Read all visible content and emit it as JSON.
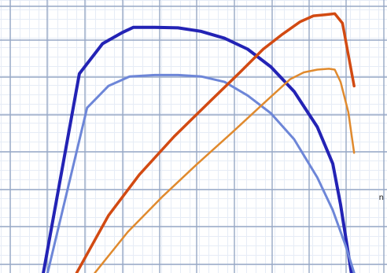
{
  "chart_data": {
    "type": "line",
    "title": "",
    "xlabel": "",
    "ylabel": "",
    "grid": true,
    "xlim": [
      0,
      100
    ],
    "ylim": [
      0,
      100
    ],
    "colors": {
      "grid_minor": "#e6ecf6",
      "grid_major": "#97a8c5",
      "series": [
        "#2323b5",
        "#6d86d8",
        "#d24a12",
        "#e08a2e"
      ]
    },
    "y_ticks": [
      {
        "value": 28,
        "label": "n"
      }
    ],
    "series": [
      {
        "x": [
          11.2,
          20.5,
          26.5,
          31.5,
          34.5,
          40,
          46,
          52,
          58,
          64,
          70,
          76,
          82,
          86,
          88,
          90.8
        ],
        "y": [
          0,
          73,
          84,
          88,
          90,
          90,
          89.8,
          88.5,
          86,
          82,
          75.5,
          66.5,
          53.5,
          40,
          25,
          0
        ],
        "stroke_width": 4
      },
      {
        "x": [
          12.3,
          22.5,
          28,
          33.5,
          40,
          46,
          52,
          58,
          64,
          70,
          76,
          82,
          86,
          89.3,
          91.5
        ],
        "y": [
          0,
          60.5,
          68.5,
          72,
          72.5,
          72.5,
          72,
          70,
          65,
          58.5,
          49,
          35,
          23,
          10,
          0
        ],
        "stroke_width": 3
      },
      {
        "x": [
          19.8,
          28,
          36,
          45,
          54,
          62,
          68,
          73,
          77.5,
          81,
          84,
          86.5,
          88.5,
          90,
          91.5
        ],
        "y": [
          0,
          21,
          36,
          50,
          62.5,
          73.5,
          82,
          87.5,
          92,
          94.2,
          94.6,
          95,
          91.5,
          80,
          68.5
        ],
        "stroke_width": 3.5
      },
      {
        "x": [
          24.5,
          33,
          42,
          51,
          60,
          68,
          75,
          78.5,
          82,
          85,
          86.5,
          88,
          90,
          91.5
        ],
        "y": [
          0,
          15,
          28,
          40,
          51.5,
          62,
          71,
          73.5,
          74.5,
          74.8,
          74.5,
          70,
          59,
          44
        ],
        "stroke_width": 2.5
      }
    ]
  }
}
